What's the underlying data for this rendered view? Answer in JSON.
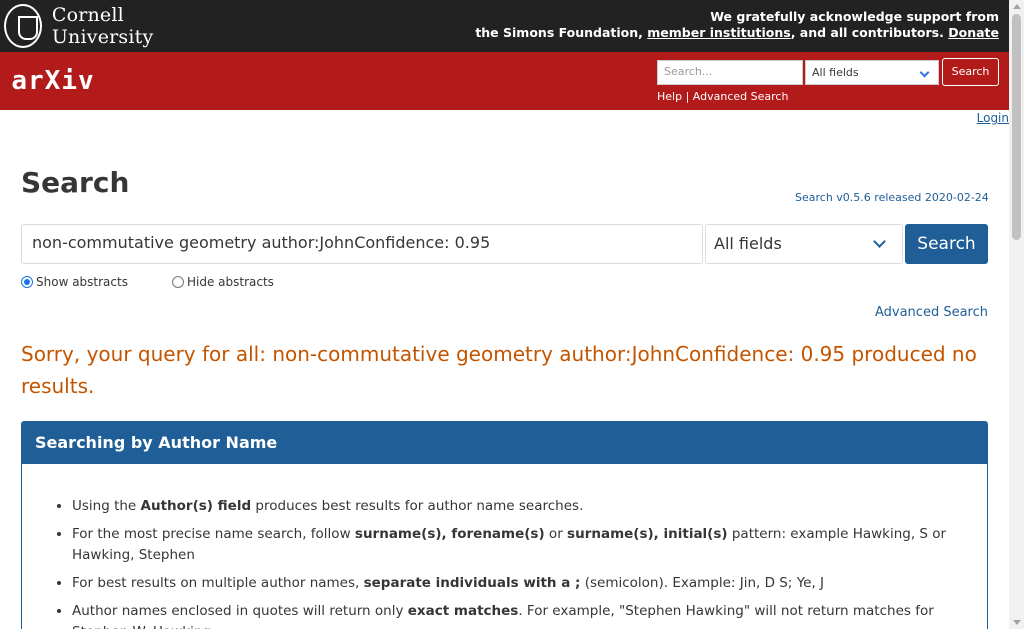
{
  "cornell": {
    "name": "Cornell University",
    "ack_line1": "We gratefully acknowledge support from",
    "ack_line2_pre": "the Simons Foundation,",
    "member_link": "member institutions",
    "ack_line2_mid": ", and all contributors.",
    "donate_link": "Donate"
  },
  "header": {
    "logo": "arXiv",
    "search_placeholder": "Search...",
    "select_value": "All fields",
    "search_button": "Search",
    "help_link": "Help",
    "separator": "|",
    "advanced_link": "Advanced Search",
    "login": "Login"
  },
  "main": {
    "title": "Search",
    "version": "Search v0.5.6 released 2020-02-24",
    "query_value": "non-commutative geometry author:JohnConfidence: 0.95",
    "select_value": "All fields",
    "search_button": "Search",
    "show_abstracts": "Show abstracts",
    "hide_abstracts": "Hide abstracts",
    "advanced_search": "Advanced Search",
    "sorry_message": "Sorry, your query for all: non-commutative geometry author:JohnConfidence: 0.95 produced no results."
  },
  "panel": {
    "heading": "Searching by Author Name",
    "tip1_pre": "Using the ",
    "tip1_bold": "Author(s) field",
    "tip1_post": " produces best results for author name searches.",
    "tip2_pre": "For the most precise name search, follow ",
    "tip2_bold1": "surname(s), forename(s)",
    "tip2_mid": " or ",
    "tip2_bold2": "surname(s), initial(s)",
    "tip2_post": " pattern: example Hawking, S or Hawking, Stephen",
    "tip3_pre": "For best results on multiple author names, ",
    "tip3_bold": "separate individuals with a ;",
    "tip3_post": " (semicolon). Example: Jin, D S; Ye, J",
    "tip4_pre": "Author names enclosed in quotes will return only ",
    "tip4_bold": "exact matches",
    "tip4_post": ". For example, \"Stephen Hawking\" will not return matches for Stephen W. Hawking."
  },
  "colors": {
    "arxiv_red": "#b31b1b",
    "link_blue": "#1f5e96",
    "sorry_orange": "#c45500"
  }
}
